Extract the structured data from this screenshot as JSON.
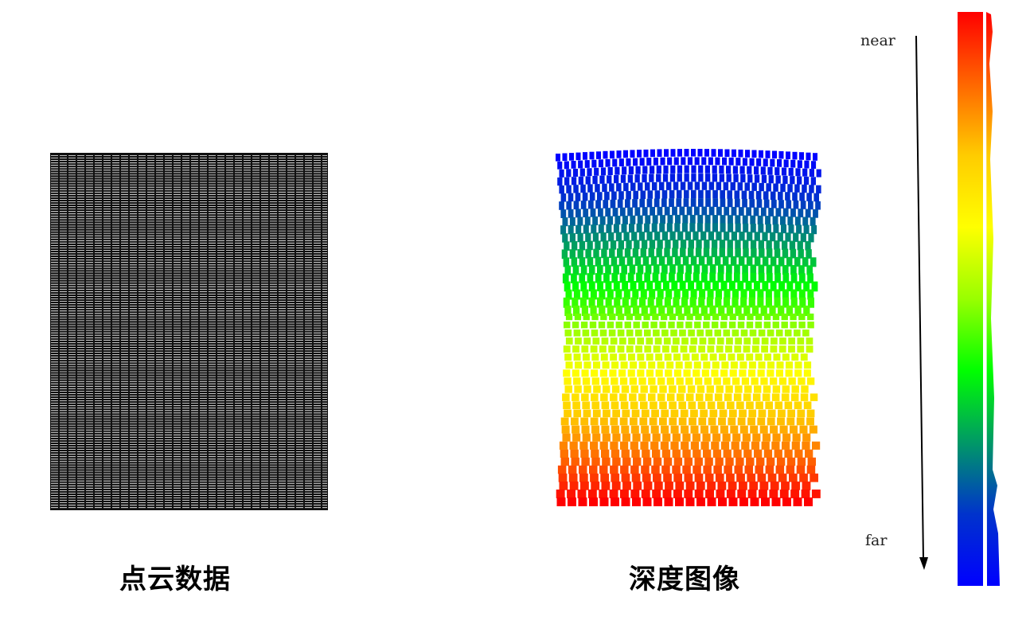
{
  "captions": {
    "point_cloud": "点云数据",
    "depth_image": "深度图像"
  },
  "depth_scale": {
    "near_label": "near",
    "far_label": "far",
    "colors": [
      "#ff0000",
      "#ff6600",
      "#ffcc00",
      "#ffff00",
      "#99ff00",
      "#00ff00",
      "#009966",
      "#0033cc",
      "#0000ff"
    ]
  },
  "point_cloud": {
    "point_color": "#ffffff",
    "background_color": "#111111"
  }
}
